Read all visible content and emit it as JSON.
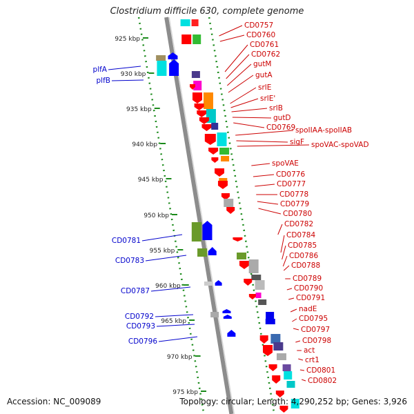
{
  "title": "Clostridium difficile 630, complete genome",
  "footer": {
    "accession": "Accession: NC_009089",
    "topology": "Topology: circular; Length: 4,290,252 bp; Genes: 3,926"
  },
  "ticks": [
    "925 kbp",
    "930 kbp",
    "935 kbp",
    "940 kbp",
    "945 kbp",
    "950 kbp",
    "955 kbp",
    "960 kbp",
    "965 kbp",
    "970 kbp",
    "975 kbp"
  ],
  "right_labels": [
    "CD0757",
    "CD0760",
    "CD0761",
    "CD0762",
    "gutM",
    "gutA",
    "srlE",
    "srlE'",
    "srlB",
    "gutD",
    "CD0769",
    "spoIIAA-spoIIAB",
    "sigF",
    "spoVAC-spoVAD",
    "spoVAE",
    "CD0776",
    "CD0777",
    "CD0778",
    "CD0779",
    "CD0780",
    "CD0782",
    "CD0784",
    "CD0785",
    "CD0786",
    "CD0788",
    "CD0789",
    "CD0790",
    "CD0791",
    "nadE",
    "CD0795",
    "CD0797",
    "CD0798",
    "act",
    "crt1",
    "CD0801",
    "CD0802"
  ],
  "left_labels": [
    "plfA",
    "plfB",
    "CD0781",
    "CD0783",
    "CD0787",
    "CD0792",
    "CD0793",
    "CD0796"
  ],
  "colors": {
    "right_label": "#cc0000",
    "left_label": "#0000cc",
    "strand_red": "#ff0000",
    "strand_blue": "#0000ff",
    "backbone": "#8c8c8c",
    "tick_green": "#1a8a1a"
  }
}
